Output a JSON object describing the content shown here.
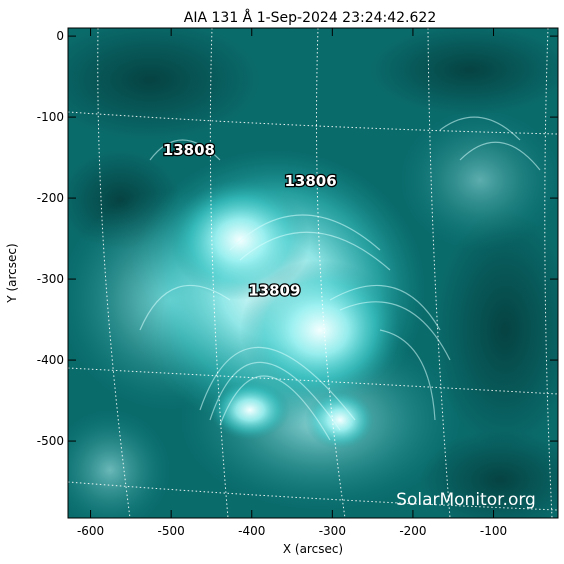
{
  "title": "AIA 131 Å  1-Sep-2024 23:24:42.622",
  "watermark": "SolarMonitor.org",
  "colors": {
    "background": "#ffffff",
    "image_base": "#0a6b6b",
    "image_mid": "#22b4b4",
    "image_bright": "#e8ffff",
    "grid": "#ffffff",
    "axes": "#000000"
  },
  "chart_data": {
    "type": "image",
    "xlabel": "X (arcsec)",
    "ylabel": "Y (arcsec)",
    "xlim": [
      -628,
      -20
    ],
    "ylim": [
      -595,
      10
    ],
    "xticks": [
      -600,
      -500,
      -400,
      -300,
      -200,
      -100
    ],
    "yticks": [
      0,
      -100,
      -200,
      -300,
      -400,
      -500
    ],
    "regions": [
      {
        "label": "13808",
        "x": -478,
        "y": -147
      },
      {
        "label": "13806",
        "x": -327,
        "y": -185
      },
      {
        "label": "13809",
        "x": -372,
        "y": -320
      }
    ]
  }
}
